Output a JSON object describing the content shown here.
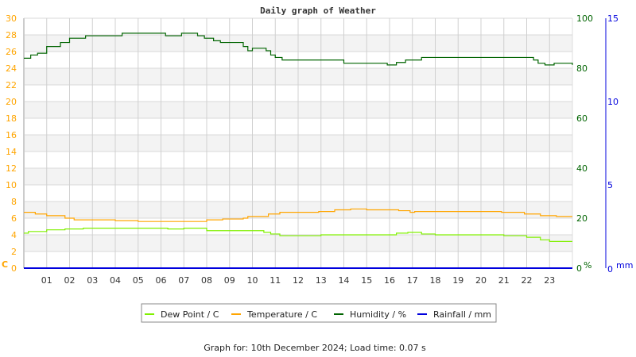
{
  "chart_data": {
    "type": "line",
    "title": "Daily graph of Weather",
    "footer": "Graph for: 10th December 2024; Load time: 0.07 s",
    "x_ticks": [
      "01",
      "02",
      "03",
      "04",
      "05",
      "06",
      "07",
      "08",
      "09",
      "10",
      "11",
      "12",
      "13",
      "14",
      "15",
      "16",
      "17",
      "18",
      "19",
      "20",
      "21",
      "22",
      "23"
    ],
    "xlim": [
      0,
      24
    ],
    "axes": {
      "left": {
        "unit_label": "C",
        "ylim": [
          0,
          30
        ],
        "ticks": [
          0,
          2,
          4,
          6,
          8,
          10,
          12,
          14,
          16,
          18,
          20,
          22,
          24,
          26,
          28,
          30
        ],
        "color": "#ffa500"
      },
      "right": {
        "unit_label": "%",
        "ylim": [
          0,
          100
        ],
        "ticks": [
          0,
          20,
          40,
          60,
          80,
          100
        ],
        "color": "#006400"
      },
      "rain": {
        "unit_label": "mm",
        "ylim": [
          0,
          15
        ],
        "ticks": [
          0,
          5,
          10,
          15
        ],
        "color": "#0000dd"
      }
    },
    "grid": true,
    "legend_position": "bottom",
    "series": [
      {
        "name": "Dew Point / C",
        "axis": "left",
        "color": "#80f000",
        "x": [
          0,
          0.2,
          1.0,
          1.8,
          2.6,
          3.6,
          5.0,
          6.3,
          7.0,
          7.8,
          8.0,
          9.0,
          10.5,
          10.8,
          11.2,
          12.0,
          13.0,
          15.0,
          16.3,
          16.8,
          17.4,
          18.0,
          20.3,
          21.0,
          22.0,
          22.6,
          23.0,
          24
        ],
        "y": [
          4.2,
          4.4,
          4.6,
          4.7,
          4.8,
          4.8,
          4.8,
          4.7,
          4.8,
          4.8,
          4.5,
          4.5,
          4.3,
          4.1,
          3.9,
          3.9,
          4.0,
          4.0,
          4.2,
          4.3,
          4.1,
          4.0,
          4.0,
          3.9,
          3.7,
          3.4,
          3.2,
          3.2
        ]
      },
      {
        "name": "Temperature / C",
        "axis": "left",
        "color": "#ffa500",
        "x": [
          0,
          0.5,
          1.0,
          1.8,
          2.2,
          3.8,
          4.0,
          5.0,
          7.7,
          8.0,
          8.7,
          9.6,
          9.8,
          10.7,
          11.2,
          12.9,
          13.6,
          14.3,
          15.0,
          16.0,
          16.4,
          16.9,
          17.1,
          20.2,
          20.9,
          21.9,
          22.6,
          23.3,
          24
        ],
        "y": [
          6.7,
          6.5,
          6.3,
          6.0,
          5.8,
          5.8,
          5.7,
          5.6,
          5.6,
          5.8,
          5.9,
          6.0,
          6.2,
          6.5,
          6.7,
          6.8,
          7.0,
          7.1,
          7.0,
          7.0,
          6.9,
          6.7,
          6.8,
          6.8,
          6.7,
          6.5,
          6.3,
          6.2,
          6.2
        ]
      },
      {
        "name": "Humidity / %",
        "axis": "right",
        "color": "#006400",
        "x": [
          0,
          0.3,
          0.6,
          1.0,
          1.6,
          2.0,
          2.7,
          4.3,
          6.2,
          6.9,
          7.6,
          7.9,
          8.3,
          8.6,
          9.4,
          9.6,
          9.8,
          10.0,
          10.6,
          10.8,
          11.0,
          11.3,
          13.6,
          14.0,
          15.9,
          16.3,
          16.7,
          17.4,
          22.3,
          22.5,
          22.8,
          23.2,
          23.9,
          24
        ],
        "y": [
          84.0,
          85.3,
          86.0,
          88.7,
          90.3,
          92.0,
          93.0,
          94.0,
          93.0,
          94.0,
          93.0,
          92.0,
          91.0,
          90.3,
          90.3,
          88.7,
          87.0,
          88.0,
          87.0,
          85.3,
          84.3,
          83.3,
          83.3,
          82.0,
          81.3,
          82.3,
          83.3,
          84.3,
          83.3,
          82.0,
          81.3,
          82.0,
          82.0,
          81.3
        ]
      },
      {
        "name": "Rainfall / mm",
        "axis": "rain",
        "color": "#0000dd",
        "x": [
          0,
          24
        ],
        "y": [
          0,
          0
        ]
      }
    ]
  }
}
